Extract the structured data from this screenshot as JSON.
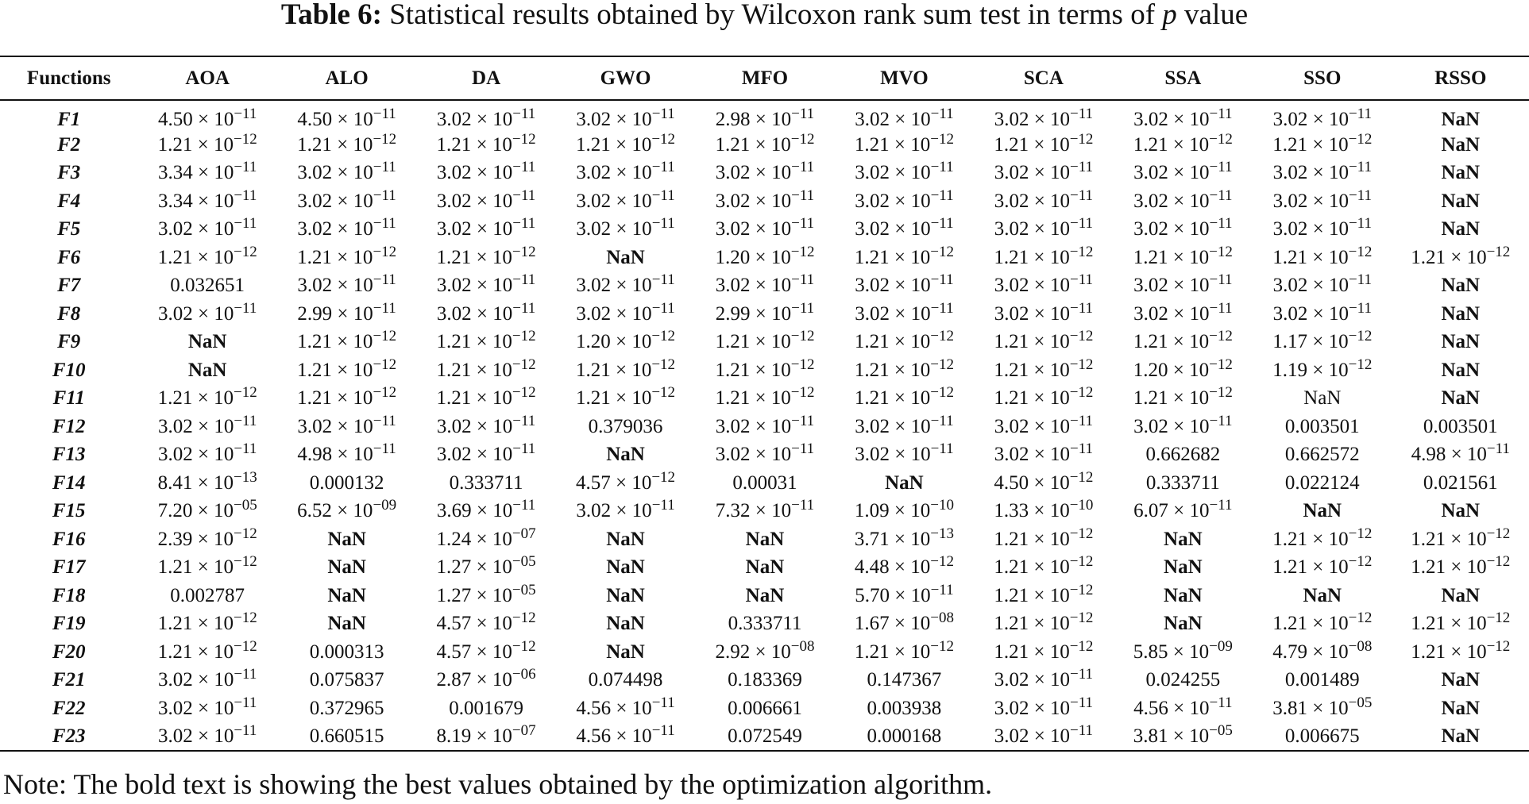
{
  "caption": {
    "label": "Table 6:",
    "text": "Statistical results obtained by Wilcoxon rank sum test in terms of",
    "var": "p",
    "suffix": "value"
  },
  "table": {
    "headers": [
      "Functions",
      "AOA",
      "ALO",
      "DA",
      "GWO",
      "MFO",
      "MVO",
      "SCA",
      "SSA",
      "SSO",
      "RSSO"
    ],
    "rows": [
      {
        "fn": "F1",
        "cells": [
          {
            "v": "4.50 × 10^−11"
          },
          {
            "v": "4.50 × 10^−11"
          },
          {
            "v": "3.02 × 10^−11"
          },
          {
            "v": "3.02 × 10^−11"
          },
          {
            "v": "2.98 × 10^−11"
          },
          {
            "v": "3.02 × 10^−11"
          },
          {
            "v": "3.02 × 10^−11"
          },
          {
            "v": "3.02 × 10^−11"
          },
          {
            "v": "3.02 × 10^−11"
          },
          {
            "v": "NaN",
            "bold": true
          }
        ]
      },
      {
        "fn": "F2",
        "cells": [
          {
            "v": "1.21 × 10^−12"
          },
          {
            "v": "1.21 × 10^−12"
          },
          {
            "v": "1.21 × 10^−12"
          },
          {
            "v": "1.21 × 10^−12"
          },
          {
            "v": "1.21 × 10^−12"
          },
          {
            "v": "1.21 × 10^−12"
          },
          {
            "v": "1.21 × 10^−12"
          },
          {
            "v": "1.21 × 10^−12"
          },
          {
            "v": "1.21 × 10^−12"
          },
          {
            "v": "NaN",
            "bold": true
          }
        ]
      },
      {
        "fn": "F3",
        "cells": [
          {
            "v": "3.34 × 10^−11"
          },
          {
            "v": "3.02 × 10^−11"
          },
          {
            "v": "3.02 × 10^−11"
          },
          {
            "v": "3.02 × 10^−11"
          },
          {
            "v": "3.02 × 10^−11"
          },
          {
            "v": "3.02 × 10^−11"
          },
          {
            "v": "3.02 × 10^−11"
          },
          {
            "v": "3.02 × 10^−11"
          },
          {
            "v": "3.02 × 10^−11"
          },
          {
            "v": "NaN",
            "bold": true
          }
        ]
      },
      {
        "fn": "F4",
        "cells": [
          {
            "v": "3.34 × 10^−11"
          },
          {
            "v": "3.02 × 10^−11"
          },
          {
            "v": "3.02 × 10^−11"
          },
          {
            "v": "3.02 × 10^−11"
          },
          {
            "v": "3.02 × 10^−11"
          },
          {
            "v": "3.02 × 10^−11"
          },
          {
            "v": "3.02 × 10^−11"
          },
          {
            "v": "3.02 × 10^−11"
          },
          {
            "v": "3.02 × 10^−11"
          },
          {
            "v": "NaN",
            "bold": true
          }
        ]
      },
      {
        "fn": "F5",
        "cells": [
          {
            "v": "3.02 × 10^−11"
          },
          {
            "v": "3.02 × 10^−11"
          },
          {
            "v": "3.02 × 10^−11"
          },
          {
            "v": "3.02 × 10^−11"
          },
          {
            "v": "3.02 × 10^−11"
          },
          {
            "v": "3.02 × 10^−11"
          },
          {
            "v": "3.02 × 10^−11"
          },
          {
            "v": "3.02 × 10^−11"
          },
          {
            "v": "3.02 × 10^−11"
          },
          {
            "v": "NaN",
            "bold": true
          }
        ]
      },
      {
        "fn": "F6",
        "cells": [
          {
            "v": "1.21 × 10^−12"
          },
          {
            "v": "1.21 × 10^−12"
          },
          {
            "v": "1.21 × 10^−12"
          },
          {
            "v": "NaN",
            "bold": true
          },
          {
            "v": "1.20 × 10^−12"
          },
          {
            "v": "1.21 × 10^−12"
          },
          {
            "v": "1.21 × 10^−12"
          },
          {
            "v": "1.21 × 10^−12"
          },
          {
            "v": "1.21 × 10^−12"
          },
          {
            "v": "1.21 × 10^−12"
          }
        ]
      },
      {
        "fn": "F7",
        "cells": [
          {
            "v": "0.032651"
          },
          {
            "v": "3.02 × 10^−11"
          },
          {
            "v": "3.02 × 10^−11"
          },
          {
            "v": "3.02 × 10^−11"
          },
          {
            "v": "3.02 × 10^−11"
          },
          {
            "v": "3.02 × 10^−11"
          },
          {
            "v": "3.02 × 10^−11"
          },
          {
            "v": "3.02 × 10^−11"
          },
          {
            "v": "3.02 × 10^−11"
          },
          {
            "v": "NaN",
            "bold": true
          }
        ]
      },
      {
        "fn": "F8",
        "cells": [
          {
            "v": "3.02 × 10^−11"
          },
          {
            "v": "2.99 × 10^−11"
          },
          {
            "v": "3.02 × 10^−11"
          },
          {
            "v": "3.02 × 10^−11"
          },
          {
            "v": "2.99 × 10^−11"
          },
          {
            "v": "3.02 × 10^−11"
          },
          {
            "v": "3.02 × 10^−11"
          },
          {
            "v": "3.02 × 10^−11"
          },
          {
            "v": "3.02 × 10^−11"
          },
          {
            "v": "NaN",
            "bold": true
          }
        ]
      },
      {
        "fn": "F9",
        "cells": [
          {
            "v": "NaN",
            "bold": true
          },
          {
            "v": "1.21 × 10^−12"
          },
          {
            "v": "1.21 × 10^−12"
          },
          {
            "v": "1.20 × 10^−12"
          },
          {
            "v": "1.21 × 10^−12"
          },
          {
            "v": "1.21 × 10^−12"
          },
          {
            "v": "1.21 × 10^−12"
          },
          {
            "v": "1.21 × 10^−12"
          },
          {
            "v": "1.17 × 10^−12"
          },
          {
            "v": "NaN",
            "bold": true
          }
        ]
      },
      {
        "fn": "F10",
        "cells": [
          {
            "v": "NaN",
            "bold": true
          },
          {
            "v": "1.21 × 10^−12"
          },
          {
            "v": "1.21 × 10^−12"
          },
          {
            "v": "1.21 × 10^−12"
          },
          {
            "v": "1.21 × 10^−12"
          },
          {
            "v": "1.21 × 10^−12"
          },
          {
            "v": "1.21 × 10^−12"
          },
          {
            "v": "1.20 × 10^−12"
          },
          {
            "v": "1.19 × 10^−12"
          },
          {
            "v": "NaN",
            "bold": true
          }
        ]
      },
      {
        "fn": "F11",
        "cells": [
          {
            "v": "1.21 × 10^−12"
          },
          {
            "v": "1.21 × 10^−12"
          },
          {
            "v": "1.21 × 10^−12"
          },
          {
            "v": "1.21 × 10^−12"
          },
          {
            "v": "1.21 × 10^−12"
          },
          {
            "v": "1.21 × 10^−12"
          },
          {
            "v": "1.21 × 10^−12"
          },
          {
            "v": "1.21 × 10^−12"
          },
          {
            "v": "NaN"
          },
          {
            "v": "NaN",
            "bold": true
          }
        ]
      },
      {
        "fn": "F12",
        "cells": [
          {
            "v": "3.02 × 10^−11"
          },
          {
            "v": "3.02 × 10^−11"
          },
          {
            "v": "3.02 × 10^−11"
          },
          {
            "v": "0.379036"
          },
          {
            "v": "3.02 × 10^−11"
          },
          {
            "v": "3.02 × 10^−11"
          },
          {
            "v": "3.02 × 10^−11"
          },
          {
            "v": "3.02 × 10^−11"
          },
          {
            "v": "0.003501"
          },
          {
            "v": "0.003501"
          }
        ]
      },
      {
        "fn": "F13",
        "cells": [
          {
            "v": "3.02 × 10^−11"
          },
          {
            "v": "4.98 × 10^−11"
          },
          {
            "v": "3.02 × 10^−11"
          },
          {
            "v": "NaN",
            "bold": true
          },
          {
            "v": "3.02 × 10^−11"
          },
          {
            "v": "3.02 × 10^−11"
          },
          {
            "v": "3.02 × 10^−11"
          },
          {
            "v": "0.662682"
          },
          {
            "v": "0.662572"
          },
          {
            "v": "4.98 × 10^−11"
          }
        ]
      },
      {
        "fn": "F14",
        "cells": [
          {
            "v": "8.41 × 10^−13"
          },
          {
            "v": "0.000132"
          },
          {
            "v": "0.333711"
          },
          {
            "v": "4.57 × 10^−12"
          },
          {
            "v": "0.00031"
          },
          {
            "v": "NaN",
            "bold": true
          },
          {
            "v": "4.50 × 10^−12"
          },
          {
            "v": "0.333711"
          },
          {
            "v": "0.022124"
          },
          {
            "v": "0.021561"
          }
        ]
      },
      {
        "fn": "F15",
        "cells": [
          {
            "v": "7.20 × 10^−05"
          },
          {
            "v": "6.52 × 10^−09"
          },
          {
            "v": "3.69 × 10^−11"
          },
          {
            "v": "3.02 × 10^−11"
          },
          {
            "v": "7.32 × 10^−11"
          },
          {
            "v": "1.09 × 10^−10"
          },
          {
            "v": "1.33 × 10^−10"
          },
          {
            "v": "6.07 × 10^−11"
          },
          {
            "v": "NaN",
            "bold": true
          },
          {
            "v": "NaN",
            "bold": true
          }
        ]
      },
      {
        "fn": "F16",
        "cells": [
          {
            "v": "2.39 × 10^−12"
          },
          {
            "v": "NaN",
            "bold": true
          },
          {
            "v": "1.24 × 10^−07"
          },
          {
            "v": "NaN",
            "bold": true
          },
          {
            "v": "NaN",
            "bold": true
          },
          {
            "v": "3.71 × 10^−13"
          },
          {
            "v": "1.21 × 10^−12"
          },
          {
            "v": "NaN",
            "bold": true
          },
          {
            "v": "1.21 × 10^−12"
          },
          {
            "v": "1.21 × 10^−12"
          }
        ]
      },
      {
        "fn": "F17",
        "cells": [
          {
            "v": "1.21 × 10^−12"
          },
          {
            "v": "NaN",
            "bold": true
          },
          {
            "v": "1.27 × 10^−05"
          },
          {
            "v": "NaN",
            "bold": true
          },
          {
            "v": "NaN",
            "bold": true
          },
          {
            "v": "4.48 × 10^−12"
          },
          {
            "v": "1.21 × 10^−12"
          },
          {
            "v": "NaN",
            "bold": true
          },
          {
            "v": "1.21 × 10^−12"
          },
          {
            "v": "1.21 × 10^−12"
          }
        ]
      },
      {
        "fn": "F18",
        "cells": [
          {
            "v": "0.002787"
          },
          {
            "v": "NaN",
            "bold": true
          },
          {
            "v": "1.27 × 10^−05"
          },
          {
            "v": "NaN",
            "bold": true
          },
          {
            "v": "NaN",
            "bold": true
          },
          {
            "v": "5.70 × 10^−11"
          },
          {
            "v": "1.21 × 10^−12"
          },
          {
            "v": "NaN",
            "bold": true
          },
          {
            "v": "NaN",
            "bold": true
          },
          {
            "v": "NaN",
            "bold": true
          }
        ]
      },
      {
        "fn": "F19",
        "cells": [
          {
            "v": "1.21 × 10^−12"
          },
          {
            "v": "NaN",
            "bold": true
          },
          {
            "v": "4.57 × 10^−12"
          },
          {
            "v": "NaN",
            "bold": true
          },
          {
            "v": "0.333711"
          },
          {
            "v": "1.67 × 10^−08"
          },
          {
            "v": "1.21 × 10^−12"
          },
          {
            "v": "NaN",
            "bold": true
          },
          {
            "v": "1.21 × 10^−12"
          },
          {
            "v": "1.21 × 10^−12"
          }
        ]
      },
      {
        "fn": "F20",
        "cells": [
          {
            "v": "1.21 × 10^−12"
          },
          {
            "v": "0.000313"
          },
          {
            "v": "4.57 × 10^−12"
          },
          {
            "v": "NaN",
            "bold": true
          },
          {
            "v": "2.92 × 10^−08"
          },
          {
            "v": "1.21 × 10^−12"
          },
          {
            "v": "1.21 × 10^−12"
          },
          {
            "v": "5.85 × 10^−09"
          },
          {
            "v": "4.79 × 10^−08"
          },
          {
            "v": "1.21 × 10^−12"
          }
        ]
      },
      {
        "fn": "F21",
        "cells": [
          {
            "v": "3.02 × 10^−11"
          },
          {
            "v": "0.075837"
          },
          {
            "v": "2.87 × 10^−06"
          },
          {
            "v": "0.074498"
          },
          {
            "v": "0.183369"
          },
          {
            "v": "0.147367"
          },
          {
            "v": "3.02 × 10^−11"
          },
          {
            "v": "0.024255"
          },
          {
            "v": "0.001489"
          },
          {
            "v": "NaN",
            "bold": true
          }
        ]
      },
      {
        "fn": "F22",
        "cells": [
          {
            "v": "3.02 × 10^−11"
          },
          {
            "v": "0.372965"
          },
          {
            "v": "0.001679"
          },
          {
            "v": "4.56 × 10^−11"
          },
          {
            "v": "0.006661"
          },
          {
            "v": "0.003938"
          },
          {
            "v": "3.02 × 10^−11"
          },
          {
            "v": "4.56 × 10^−11"
          },
          {
            "v": "3.81 × 10^−05"
          },
          {
            "v": "NaN",
            "bold": true
          }
        ]
      },
      {
        "fn": "F23",
        "cells": [
          {
            "v": "3.02 × 10^−11"
          },
          {
            "v": "0.660515"
          },
          {
            "v": "8.19 × 10^−07"
          },
          {
            "v": "4.56 × 10^−11"
          },
          {
            "v": "0.072549"
          },
          {
            "v": "0.000168"
          },
          {
            "v": "3.02 × 10^−11"
          },
          {
            "v": "3.81 × 10^−05"
          },
          {
            "v": "0.006675"
          },
          {
            "v": "NaN",
            "bold": true
          }
        ]
      }
    ]
  },
  "note": "Note: The bold text is showing the best values obtained by the optimization algorithm."
}
